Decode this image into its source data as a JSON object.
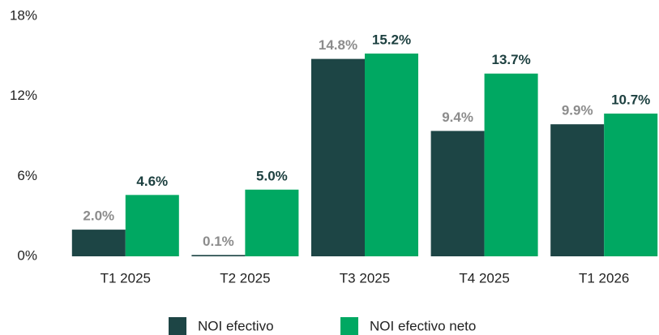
{
  "chart_data": {
    "type": "bar",
    "categories": [
      "T1 2025",
      "T2 2025",
      "T3 2025",
      "T4 2025",
      "T1 2026"
    ],
    "series": [
      {
        "name": "NOI efectivo",
        "color": "#1d4545",
        "label_color": "#8c8c8c",
        "values": [
          2.0,
          0.1,
          14.8,
          9.4,
          9.9
        ],
        "value_labels": [
          "2.0%",
          "0.1%",
          "14.8%",
          "9.4%",
          "9.9%"
        ]
      },
      {
        "name": "NOI efectivo neto",
        "color": "#00a862",
        "label_color": "#1d4040",
        "values": [
          4.6,
          5.0,
          15.2,
          13.7,
          10.7
        ],
        "value_labels": [
          "4.6%",
          "5.0%",
          "15.2%",
          "13.7%",
          "10.7%"
        ]
      }
    ],
    "ylim": [
      0,
      18
    ],
    "yticks": [
      {
        "value": 0,
        "label": "0%"
      },
      {
        "value": 6,
        "label": "6%"
      },
      {
        "value": 12,
        "label": "12%"
      },
      {
        "value": 18,
        "label": "18%"
      }
    ],
    "grid": false
  }
}
